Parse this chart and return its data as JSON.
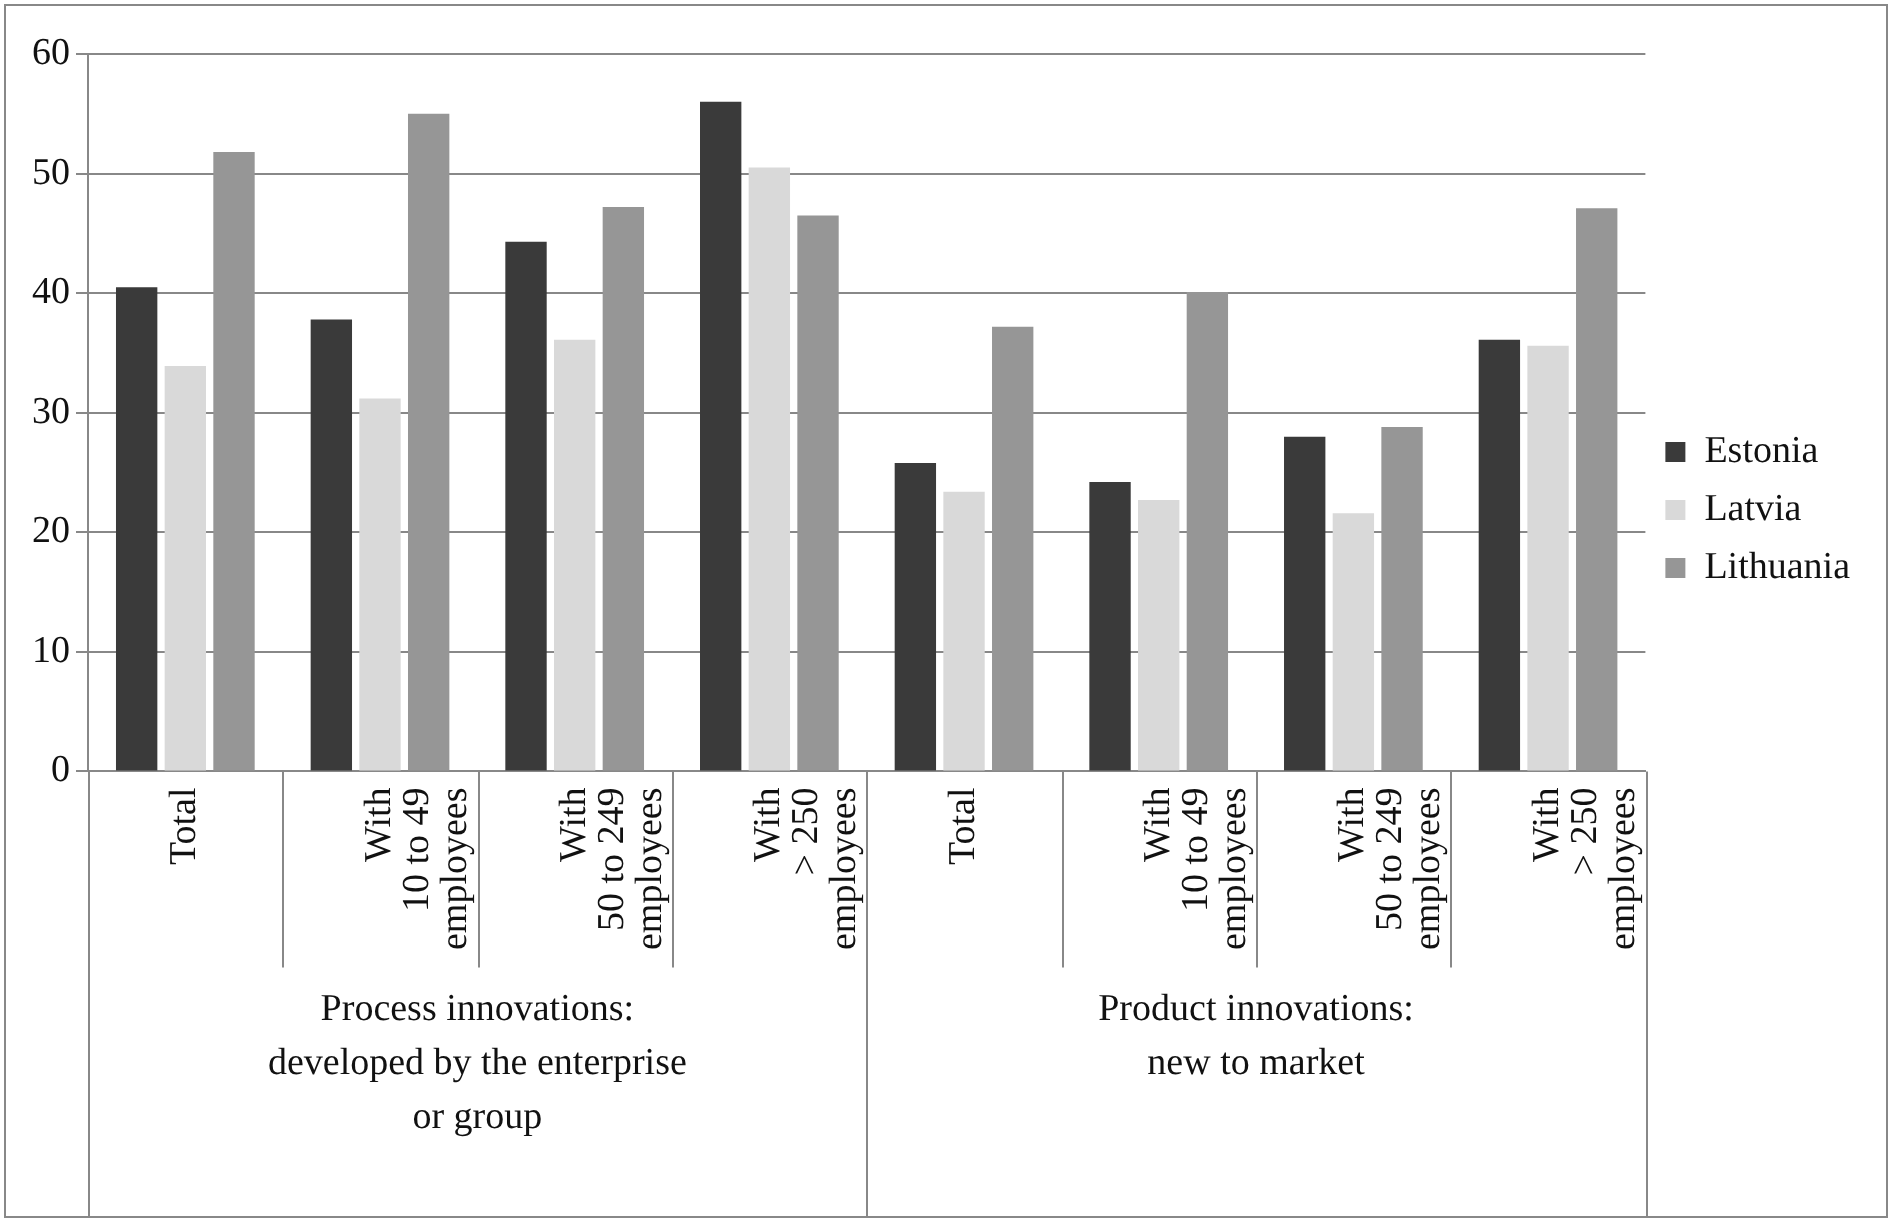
{
  "chart_data": {
    "type": "bar",
    "categories": [
      "Total",
      "With\n10 to 49\nemployees",
      "With\n50 to 249\nemployees",
      "With\n> 250\nemployees",
      "Total",
      "With\n10 to 49\nemployees",
      "With\n50 to 249\nemployees",
      "With\n> 250\nemployees"
    ],
    "series": [
      {
        "name": "Estonia",
        "color": "#3a3a3a",
        "values": [
          40.5,
          37.8,
          44.3,
          56,
          25.8,
          24.2,
          28,
          36.1
        ]
      },
      {
        "name": "Latvia",
        "color": "#d9d9d9",
        "values": [
          33.9,
          31.2,
          36.1,
          50.5,
          23.4,
          22.7,
          21.6,
          35.6
        ]
      },
      {
        "name": "Lithuania",
        "color": "#969696",
        "values": [
          51.8,
          55,
          47.2,
          46.5,
          37.2,
          40.1,
          28.8,
          47.1
        ]
      }
    ],
    "annotations": [
      "Process innovations:\ndeveloped by the enterprise\nor group",
      "Product innovations:\nnew to market"
    ],
    "ylim": [
      0,
      60
    ],
    "yticks": [
      0,
      10,
      20,
      30,
      40,
      50,
      60
    ],
    "grid": "y",
    "legend": "right"
  }
}
